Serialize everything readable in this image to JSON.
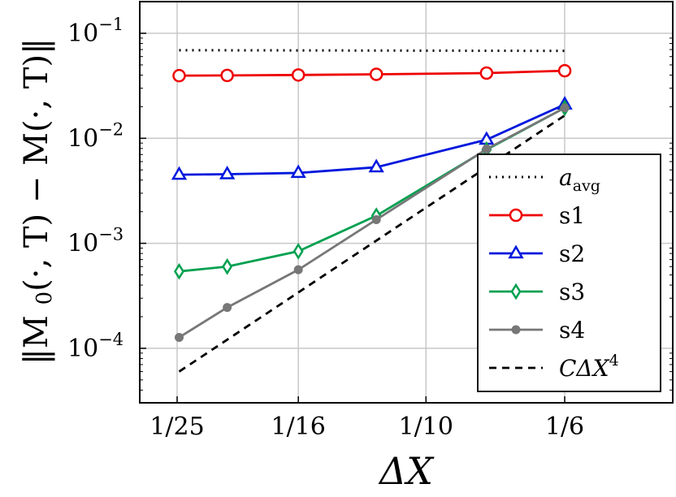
{
  "chart_data": {
    "type": "line",
    "title": "",
    "xlabel_base": "ΔX",
    "ylabel": "‖M₀(·,T) − M(·,T)‖",
    "y_scale": "log",
    "ylim": [
      3e-05,
      0.2
    ],
    "x_scale": "log",
    "x_ticks": [
      {
        "value": 0.04,
        "label": "1/25"
      },
      {
        "value": 0.0625,
        "label": "1/16"
      },
      {
        "value": 0.1,
        "label": "1/10"
      },
      {
        "value": 0.16667,
        "label": "1/6"
      }
    ],
    "y_ticks": [
      {
        "value": 0.1,
        "base": "10",
        "exp": "−1"
      },
      {
        "value": 0.01,
        "base": "10",
        "exp": "−2"
      },
      {
        "value": 0.001,
        "base": "10",
        "exp": "−3"
      },
      {
        "value": 0.0001,
        "base": "10",
        "exp": "−4"
      }
    ],
    "grid": true,
    "legend_position": "right-middle",
    "series": [
      {
        "name": "a",
        "name_sub": "avg",
        "style": "dotted",
        "color": "#000000",
        "marker": "none",
        "x": [
          0.0403,
          0.1667
        ],
        "y": [
          0.069,
          0.068
        ]
      },
      {
        "name": "s1",
        "style": "solid",
        "color": "#ee0000",
        "marker": "circle",
        "x": [
          0.0403,
          0.0481,
          0.0625,
          0.0833,
          0.125,
          0.1667
        ],
        "y": [
          0.0395,
          0.0397,
          0.0401,
          0.0407,
          0.0418,
          0.044
        ]
      },
      {
        "name": "s2",
        "style": "solid",
        "color": "#0018dd",
        "marker": "triangle",
        "x": [
          0.0403,
          0.0481,
          0.0625,
          0.0833,
          0.125,
          0.1667
        ],
        "y": [
          0.0045,
          0.00455,
          0.00468,
          0.0053,
          0.0097,
          0.021
        ]
      },
      {
        "name": "s3",
        "style": "solid",
        "color": "#00a050",
        "marker": "diamond",
        "x": [
          0.0403,
          0.0481,
          0.0625,
          0.0833,
          0.125,
          0.1667
        ],
        "y": [
          0.00054,
          0.0006,
          0.00084,
          0.00183,
          0.0078,
          0.0195
        ]
      },
      {
        "name": "s4",
        "style": "solid",
        "color": "#777777",
        "marker": "dot",
        "x": [
          0.0403,
          0.0481,
          0.0625,
          0.0833,
          0.125,
          0.1667
        ],
        "y": [
          0.000127,
          0.000245,
          0.00056,
          0.00168,
          0.0079,
          0.0195
        ]
      },
      {
        "name": "CΔX",
        "name_sup": "4",
        "style": "dashed",
        "color": "#000000",
        "marker": "none",
        "x": [
          0.0403,
          0.1667
        ],
        "y": [
          6e-05,
          0.0165
        ]
      }
    ]
  }
}
